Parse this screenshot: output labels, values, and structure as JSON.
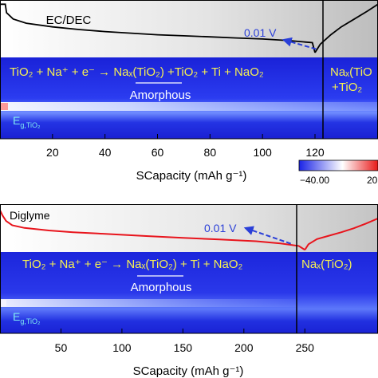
{
  "colors": {
    "curve_top": "#000000",
    "curve_bottom": "#e8141c",
    "arrow": "#2a3fd8",
    "reaction_text": "#f6f052",
    "eg_label": "#7fe8f0",
    "heatmap_base": "#1a24e6",
    "band_glow": "#d8e6ff",
    "colorbar_low": "#1a24e6",
    "colorbar_mid": "#ffffff",
    "colorbar_high": "#e81818"
  },
  "chart_data": [
    {
      "type": "line",
      "panel": "top",
      "electrolyte": "EC/DEC",
      "xlabel": "SCapacity (mAh g⁻¹)",
      "xticks": [
        "20",
        "40",
        "60",
        "80",
        "100",
        "120"
      ],
      "xlim": [
        0,
        144
      ],
      "ylabel": "",
      "discharge_end_x": 120,
      "annotation": "0.01 V",
      "series": [
        {
          "segment": "discharge",
          "x": [
            0,
            2,
            2.5,
            5,
            10,
            20,
            30,
            40,
            50,
            60,
            70,
            80,
            90,
            100,
            110,
            119,
            120
          ],
          "y": [
            0.98,
            0.98,
            0.82,
            0.7,
            0.62,
            0.55,
            0.5,
            0.46,
            0.43,
            0.4,
            0.38,
            0.36,
            0.34,
            0.32,
            0.29,
            0.25,
            0.06
          ]
        },
        {
          "segment": "charge",
          "x": [
            120,
            122,
            126,
            130,
            135,
            140,
            144
          ],
          "y": [
            0.06,
            0.22,
            0.4,
            0.55,
            0.7,
            0.85,
            0.98
          ]
        }
      ],
      "reaction_line1": {
        "lhs": "TiO₂ + Na⁺ + e⁻ → ",
        "rhs": "Naₓ(TiO₂) +TiO₂ + Ti + NaO₂"
      },
      "amorphous_label": "Amorphous",
      "eg_label": {
        "main": "E",
        "sub": "g,TiO₂"
      },
      "right_product": {
        "line1": "Naₓ(TiO",
        "line2": "+TiO₂"
      },
      "heatmap_note": "intensity map with bright band near Eg",
      "colorbar": {
        "min_label": "−40.00",
        "max_label": "20"
      }
    },
    {
      "type": "line",
      "panel": "bottom",
      "electrolyte": "Diglyme",
      "xlabel": "SCapacity (mAh g⁻¹)",
      "xticks": [
        "50",
        "100",
        "150",
        "200",
        "250"
      ],
      "xlim": [
        0,
        310
      ],
      "ylabel": "",
      "discharge_end_x": 250,
      "annotation": "0.01 V",
      "series": [
        {
          "segment": "discharge",
          "x": [
            0,
            2,
            5,
            10,
            20,
            40,
            60,
            80,
            100,
            120,
            150,
            180,
            210,
            230,
            245,
            250
          ],
          "y": [
            0.97,
            0.85,
            0.72,
            0.62,
            0.56,
            0.5,
            0.46,
            0.43,
            0.4,
            0.37,
            0.33,
            0.29,
            0.25,
            0.2,
            0.14,
            0.05
          ]
        },
        {
          "segment": "charge",
          "x": [
            250,
            253,
            260,
            270,
            280,
            290,
            300,
            310
          ],
          "y": [
            0.05,
            0.18,
            0.3,
            0.38,
            0.46,
            0.55,
            0.66,
            0.78
          ]
        }
      ],
      "reaction_line1": {
        "lhs": "TiO₂ + Na⁺ + e⁻ → ",
        "rhs": "Naₓ(TiO₂) + Ti + NaO₂"
      },
      "amorphous_label": "Amorphous",
      "eg_label": {
        "main": "E",
        "sub": "g,TiO₂"
      },
      "right_product": {
        "line1": "Naₓ(TiO₂)"
      }
    }
  ]
}
